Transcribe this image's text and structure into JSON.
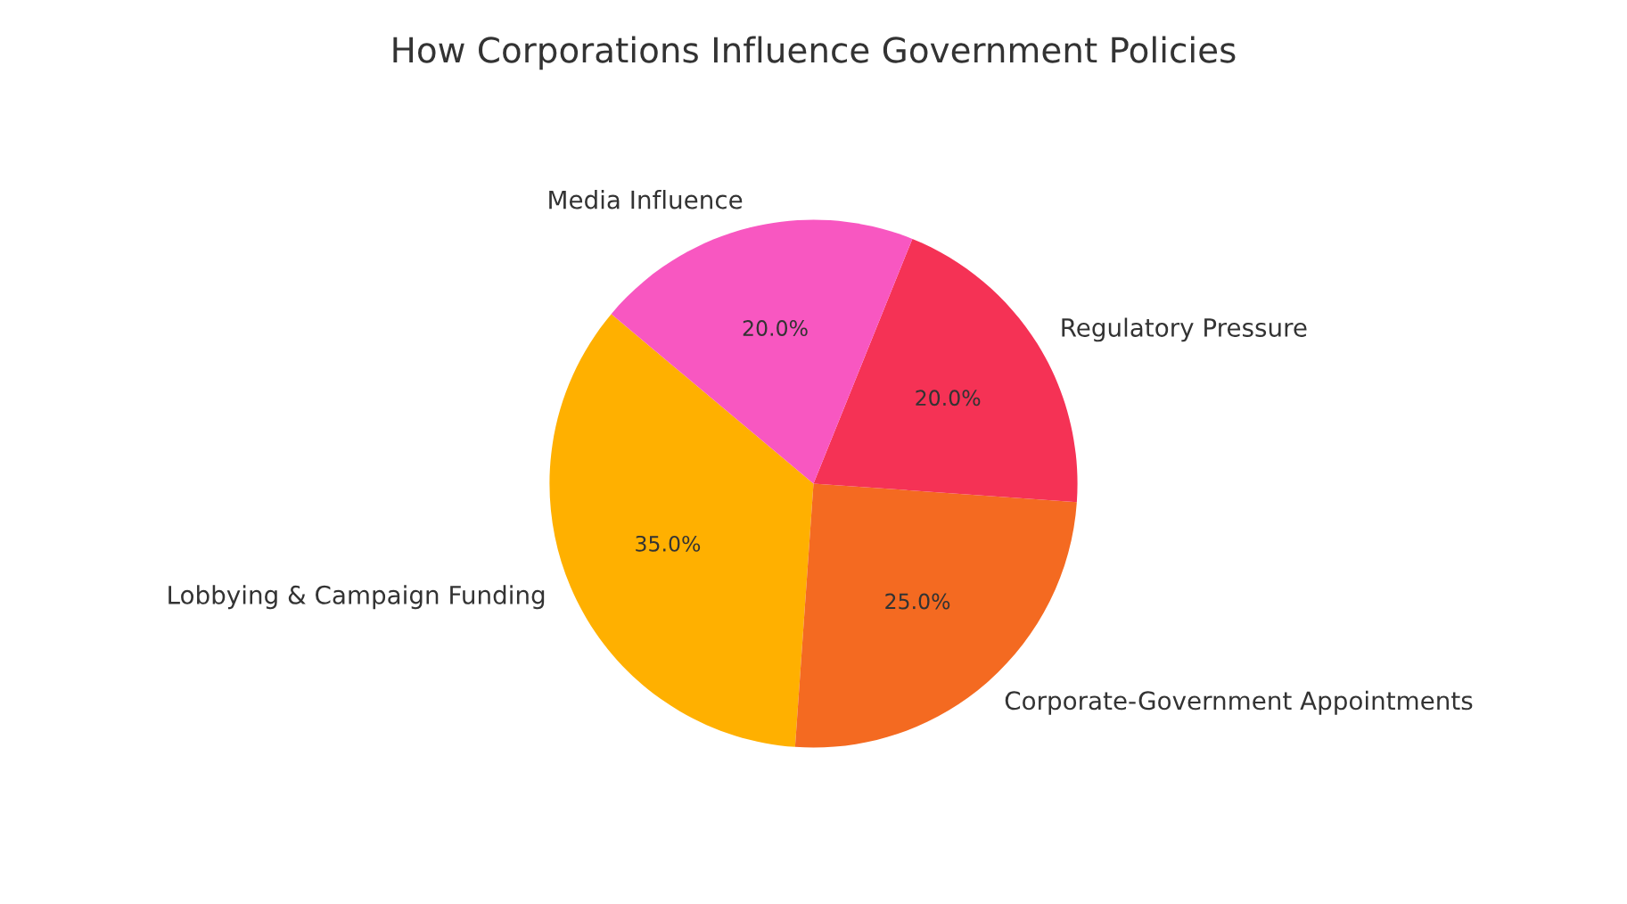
{
  "chart_data": {
    "type": "pie",
    "title": "How Corporations Influence Government Policies",
    "categories": [
      "Lobbying & Campaign Funding",
      "Corporate-Government Appointments",
      "Regulatory Pressure",
      "Media Influence"
    ],
    "values": [
      35,
      25,
      20,
      20
    ],
    "colors": [
      "#ffb000",
      "#f46a21",
      "#f53255",
      "#f857c1"
    ],
    "value_labels": [
      "35.0%",
      "25.0%",
      "20.0%",
      "20.0%"
    ]
  }
}
